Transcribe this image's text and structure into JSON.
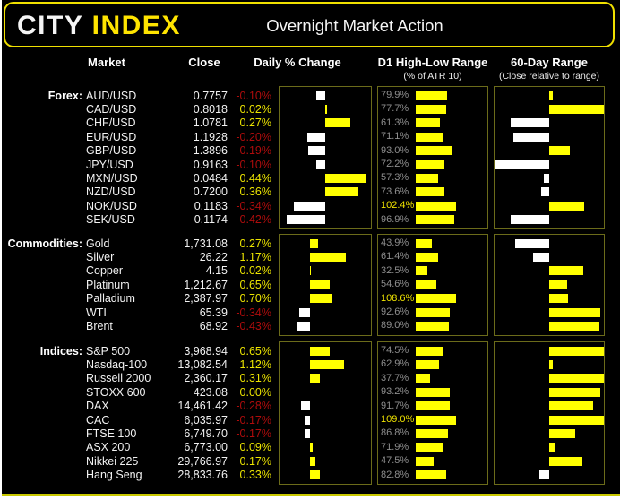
{
  "header": {
    "logo_city": "CITY",
    "logo_index": "INDEX",
    "title": "Overnight Market Action"
  },
  "colors": {
    "background": "#000000",
    "accent_yellow": "#ffff00",
    "logo_yellow": "#ffe400",
    "positive_text": "#ece400",
    "negative_text": "#ae0c0c",
    "neutral_bar_white": "#ffffff",
    "atr_text_gray": "#8f8f8f",
    "box_border_olive": "#6b6b1a",
    "header_border_yellow": "#f0e000"
  },
  "chart_data": {
    "type": "table",
    "title": "Overnight Market Action",
    "columns": {
      "market": "Market",
      "close": "Close",
      "daily": "Daily % Change",
      "d1": "D1 High-Low Range",
      "d1_sub": "(% of ATR 10)",
      "d60": "60-Day Range",
      "d60_sub": "(Close relative to range)"
    },
    "legend_notes": {
      "daily_bars": "yellow = positive change, white = negative change",
      "range60_bars": "bar drawn from 50% midpoint; yellow = close in upper half of 60-day range, white = lower half",
      "range60_pct_is_estimated": true
    },
    "sections": [
      {
        "label": "Forex:",
        "daily_axis": {
          "min": -0.5,
          "max": 0.5
        },
        "atr_axis_max": 102.4,
        "rows": [
          {
            "market": "AUD/USD",
            "close": "0.7757",
            "daily_pct": -0.1,
            "daily_label": "-0.10%",
            "atr_pct": 79.9,
            "atr_label": "79.9%",
            "range60_pct": 53
          },
          {
            "market": "CAD/USD",
            "close": "0.8018",
            "daily_pct": 0.02,
            "daily_label": "0.02%",
            "atr_pct": 77.7,
            "atr_label": "77.7%",
            "range60_pct": 100
          },
          {
            "market": "CHF/USD",
            "close": "1.0781",
            "daily_pct": 0.27,
            "daily_label": "0.27%",
            "atr_pct": 61.3,
            "atr_label": "61.3%",
            "range60_pct": 15
          },
          {
            "market": "EUR/USD",
            "close": "1.1928",
            "daily_pct": -0.2,
            "daily_label": "-0.20%",
            "atr_pct": 71.1,
            "atr_label": "71.1%",
            "range60_pct": 17
          },
          {
            "market": "GBP/USD",
            "close": "1.3896",
            "daily_pct": -0.19,
            "daily_label": "-0.19%",
            "atr_pct": 93.0,
            "atr_label": "93.0%",
            "range60_pct": 69
          },
          {
            "market": "JPY/USD",
            "close": "0.9163",
            "daily_pct": -0.1,
            "daily_label": "-0.10%",
            "atr_pct": 72.2,
            "atr_label": "72.2%",
            "range60_pct": 1
          },
          {
            "market": "MXN/USD",
            "close": "0.0484",
            "daily_pct": 0.44,
            "daily_label": "0.44%",
            "atr_pct": 57.3,
            "atr_label": "57.3%",
            "range60_pct": 45
          },
          {
            "market": "NZD/USD",
            "close": "0.7200",
            "daily_pct": 0.36,
            "daily_label": "0.36%",
            "atr_pct": 73.6,
            "atr_label": "73.6%",
            "range60_pct": 43
          },
          {
            "market": "NOK/USD",
            "close": "0.1183",
            "daily_pct": -0.34,
            "daily_label": "-0.34%",
            "atr_pct": 102.4,
            "atr_label": "102.4%",
            "range60_pct": 82
          },
          {
            "market": "SEK/USD",
            "close": "0.1174",
            "daily_pct": -0.42,
            "daily_label": "-0.42%",
            "atr_pct": 96.9,
            "atr_label": "96.9%",
            "range60_pct": 15
          }
        ]
      },
      {
        "label": "Commodities:",
        "daily_axis": {
          "min": -1.0,
          "max": 2.0
        },
        "atr_axis_max": 108.6,
        "rows": [
          {
            "market": "Gold",
            "close": "1,731.08",
            "daily_pct": 0.27,
            "daily_label": "0.27%",
            "atr_pct": 43.9,
            "atr_label": "43.9%",
            "range60_pct": 19
          },
          {
            "market": "Silver",
            "close": "26.22",
            "daily_pct": 1.17,
            "daily_label": "1.17%",
            "atr_pct": 61.4,
            "atr_label": "61.4%",
            "range60_pct": 35
          },
          {
            "market": "Copper",
            "close": "4.15",
            "daily_pct": 0.02,
            "daily_label": "0.02%",
            "atr_pct": 32.5,
            "atr_label": "32.5%",
            "range60_pct": 81
          },
          {
            "market": "Platinum",
            "close": "1,212.67",
            "daily_pct": 0.65,
            "daily_label": "0.65%",
            "atr_pct": 54.6,
            "atr_label": "54.6%",
            "range60_pct": 66
          },
          {
            "market": "Palladium",
            "close": "2,387.97",
            "daily_pct": 0.7,
            "daily_label": "0.70%",
            "atr_pct": 108.6,
            "atr_label": "108.6%",
            "range60_pct": 67
          },
          {
            "market": "WTI",
            "close": "65.39",
            "daily_pct": -0.34,
            "daily_label": "-0.34%",
            "atr_pct": 92.6,
            "atr_label": "92.6%",
            "range60_pct": 97
          },
          {
            "market": "Brent",
            "close": "68.92",
            "daily_pct": -0.43,
            "daily_label": "-0.43%",
            "atr_pct": 89.0,
            "atr_label": "89.0%",
            "range60_pct": 96
          }
        ]
      },
      {
        "label": "Indices:",
        "daily_axis": {
          "min": -1.0,
          "max": 2.0
        },
        "atr_axis_max": 109.0,
        "rows": [
          {
            "market": "S&P 500",
            "close": "3,968.94",
            "daily_pct": 0.65,
            "daily_label": "0.65%",
            "atr_pct": 74.5,
            "atr_label": "74.5%",
            "range60_pct": 100
          },
          {
            "market": "Nasdaq-100",
            "close": "13,082.54",
            "daily_pct": 1.12,
            "daily_label": "1.12%",
            "atr_pct": 62.9,
            "atr_label": "62.9%",
            "range60_pct": 53
          },
          {
            "market": "Russell 2000",
            "close": "2,360.17",
            "daily_pct": 0.31,
            "daily_label": "0.31%",
            "atr_pct": 37.7,
            "atr_label": "37.7%",
            "range60_pct": 100
          },
          {
            "market": "STOXX 600",
            "close": "423.08",
            "daily_pct": 0.0,
            "daily_label": "0.00%",
            "atr_pct": 93.2,
            "atr_label": "93.2%",
            "range60_pct": 97
          },
          {
            "market": "DAX",
            "close": "14,461.42",
            "daily_pct": -0.28,
            "daily_label": "-0.28%",
            "atr_pct": 91.7,
            "atr_label": "91.7%",
            "range60_pct": 90
          },
          {
            "market": "CAC",
            "close": "6,035.97",
            "daily_pct": -0.17,
            "daily_label": "-0.17%",
            "atr_pct": 109.0,
            "atr_label": "109.0%",
            "range60_pct": 100
          },
          {
            "market": "FTSE 100",
            "close": "6,749.70",
            "daily_pct": -0.17,
            "daily_label": "-0.17%",
            "atr_pct": 86.8,
            "atr_label": "86.8%",
            "range60_pct": 74
          },
          {
            "market": "ASX 200",
            "close": "6,773.00",
            "daily_pct": 0.09,
            "daily_label": "0.09%",
            "atr_pct": 71.9,
            "atr_label": "71.9%",
            "range60_pct": 56
          },
          {
            "market": "Nikkei 225",
            "close": "29,766.97",
            "daily_pct": 0.17,
            "daily_label": "0.17%",
            "atr_pct": 47.5,
            "atr_label": "47.5%",
            "range60_pct": 80
          },
          {
            "market": "Hang Seng",
            "close": "28,833.76",
            "daily_pct": 0.33,
            "daily_label": "0.33%",
            "atr_pct": 82.8,
            "atr_label": "82.8%",
            "range60_pct": 41
          }
        ]
      }
    ]
  }
}
